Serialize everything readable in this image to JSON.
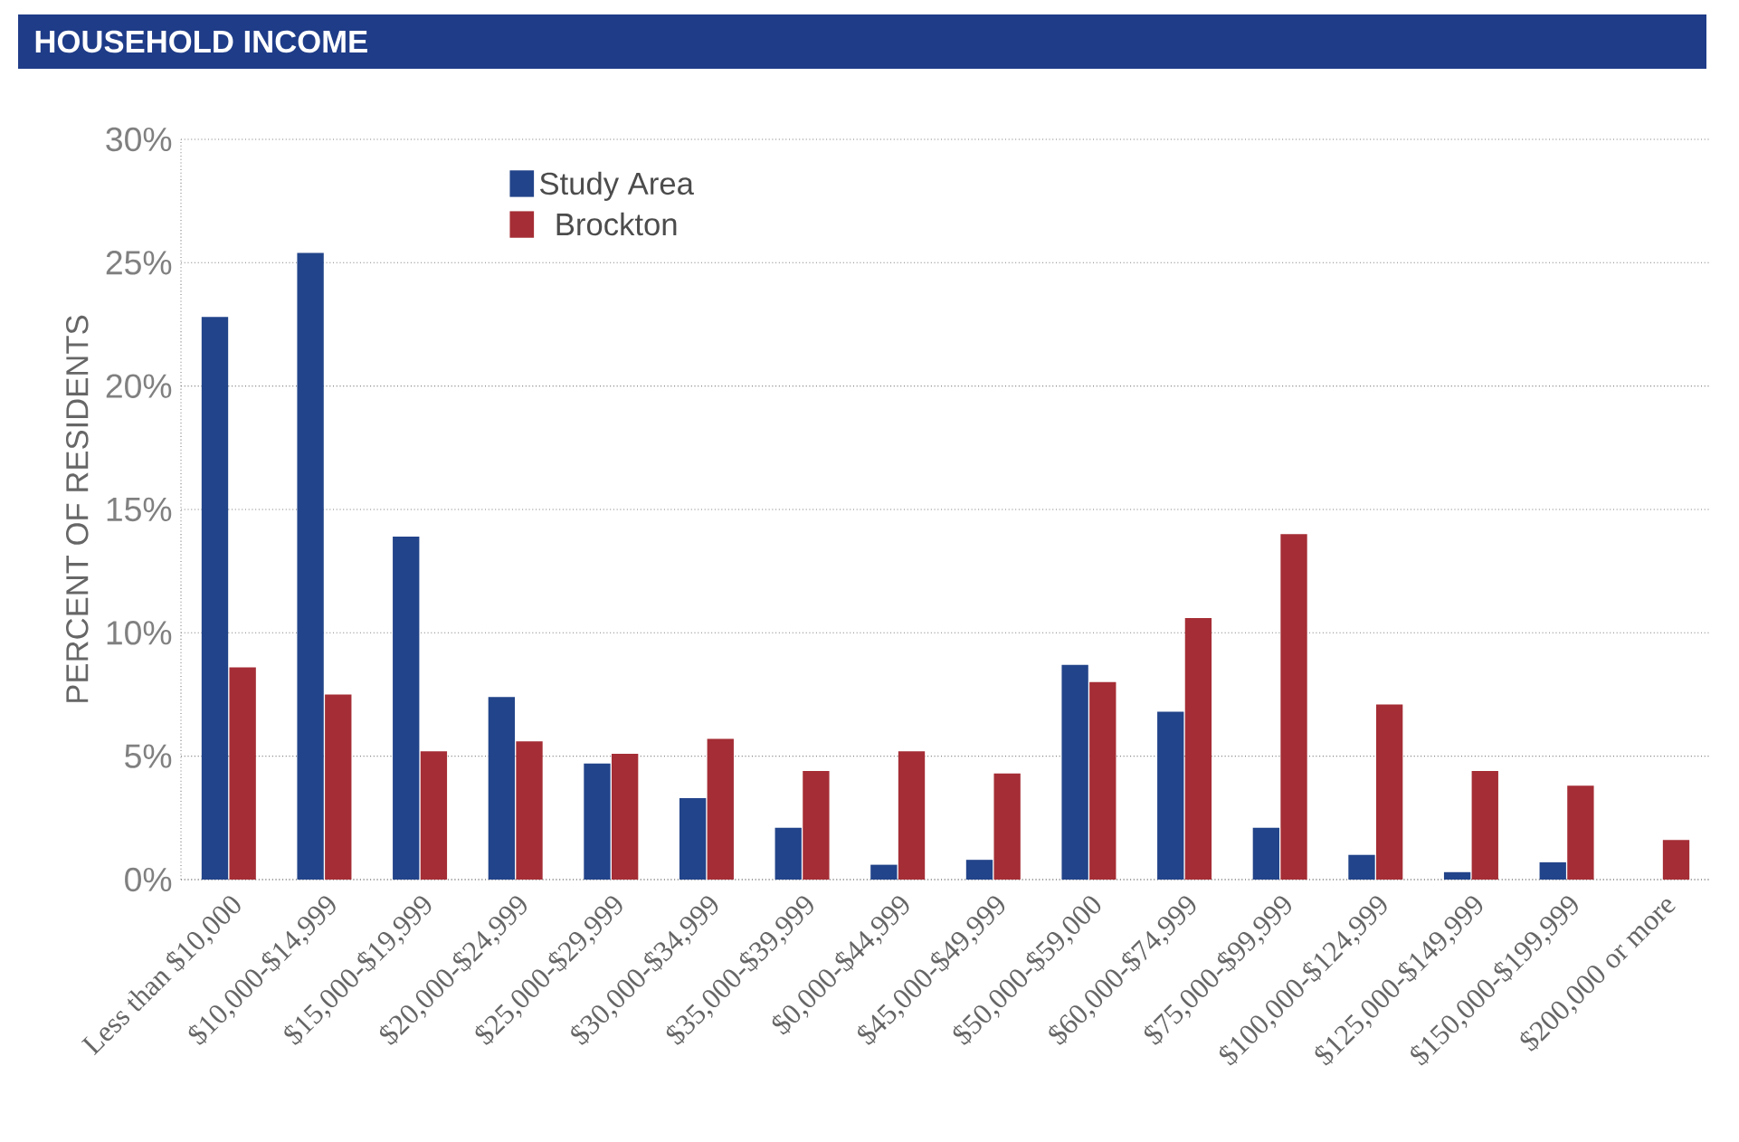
{
  "chart_data": {
    "type": "bar",
    "title": "HOUSEHOLD INCOME",
    "ylabel": "PERCENT OF RESIDENTS",
    "categories": [
      "Less than $10,000",
      "$10,000-$14,999",
      "$15,000-$19,999",
      "$20,000-$24,999",
      "$25,000-$29,999",
      "$30,000-$34,999",
      "$35,000-$39,999",
      "$0,000-$44,999",
      "$45,000-$49,999",
      "$50,000-$59,000",
      "$60,000-$74,999",
      "$75,000-$99,999",
      "$100,000-$124,999",
      "$125,000-$149,999",
      "$150,000-$199,999",
      "$200,000 or more"
    ],
    "series": [
      {
        "name": "Study Area",
        "color": "#22448a",
        "values": [
          22.8,
          25.4,
          13.9,
          7.4,
          4.7,
          3.3,
          2.1,
          0.6,
          0.8,
          8.7,
          6.8,
          2.1,
          1.0,
          0.3,
          0.7,
          null
        ]
      },
      {
        "name": "Brockton",
        "color": "#a52d35",
        "values": [
          8.6,
          7.5,
          5.2,
          5.6,
          5.1,
          5.7,
          4.4,
          5.2,
          4.3,
          8.0,
          10.6,
          14.0,
          7.1,
          4.4,
          3.8,
          1.6
        ]
      }
    ],
    "ylim": [
      0,
      30
    ],
    "yticks": [
      {
        "value": 0,
        "label": "0%"
      },
      {
        "value": 5,
        "label": "5%"
      },
      {
        "value": 10,
        "label": "10%"
      },
      {
        "value": 15,
        "label": "15%"
      },
      {
        "value": 20,
        "label": "20%"
      },
      {
        "value": 25,
        "label": "25%"
      },
      {
        "value": 30,
        "label": "30%"
      }
    ],
    "grid": "y",
    "legend": "top left"
  }
}
